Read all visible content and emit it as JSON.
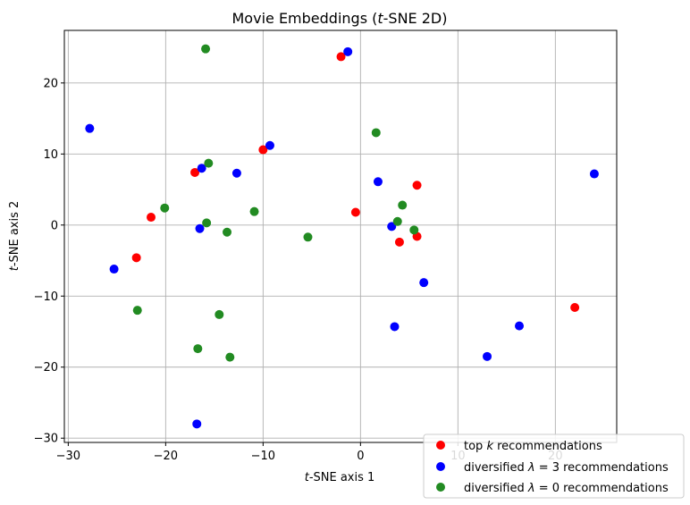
{
  "chart_data": {
    "type": "scatter",
    "title": "Movie Embeddings (t-SNE 2D)",
    "title_parts": [
      "Movie Embeddings (",
      "t",
      "-SNE 2D)"
    ],
    "xlabel": "t-SNE axis 1",
    "xlabel_parts": [
      "t",
      "-SNE axis 1"
    ],
    "ylabel": "t-SNE axis 2",
    "ylabel_parts": [
      "t",
      "-SNE axis 2"
    ],
    "xlim": [
      -30.4,
      26.3
    ],
    "ylim": [
      -30.6,
      27.4
    ],
    "xticks": [
      -30,
      -20,
      -10,
      0,
      10,
      20
    ],
    "yticks": [
      -30,
      -20,
      -10,
      0,
      10,
      20
    ],
    "xtick_labels": [
      "−30",
      "−20",
      "−10",
      "0",
      "10",
      "20"
    ],
    "ytick_labels": [
      "−30",
      "−20",
      "−10",
      "0",
      "10",
      "20"
    ],
    "grid": true,
    "legend_position": "bottom-right",
    "series": [
      {
        "name": "top k recommendations",
        "name_parts": [
          "top ",
          "k",
          " recommendations"
        ],
        "color": "#ff0000",
        "points": [
          [
            -2.0,
            23.7
          ],
          [
            -10.0,
            10.6
          ],
          [
            -17.0,
            7.4
          ],
          [
            -21.5,
            1.1
          ],
          [
            -23.0,
            -4.6
          ],
          [
            -0.5,
            1.8
          ],
          [
            5.8,
            5.6
          ],
          [
            4.0,
            -2.4
          ],
          [
            5.8,
            -1.6
          ],
          [
            22.0,
            -11.6
          ]
        ]
      },
      {
        "name": "diversified λ = 3 recommendations",
        "name_parts": [
          "diversified ",
          "λ",
          " = 3 recommendations"
        ],
        "color": "#0000ff",
        "points": [
          [
            -1.3,
            24.4
          ],
          [
            -27.8,
            13.6
          ],
          [
            -9.3,
            11.2
          ],
          [
            -16.3,
            8.0
          ],
          [
            -12.7,
            7.3
          ],
          [
            -16.5,
            -0.5
          ],
          [
            -25.3,
            -6.2
          ],
          [
            1.8,
            6.1
          ],
          [
            3.2,
            -0.2
          ],
          [
            6.5,
            -8.1
          ],
          [
            3.5,
            -14.3
          ],
          [
            13.0,
            -18.5
          ],
          [
            16.3,
            -14.2
          ],
          [
            24.0,
            7.2
          ],
          [
            -16.8,
            -28.0
          ]
        ]
      },
      {
        "name": "diversified λ = 0 recommendations",
        "name_parts": [
          "diversified ",
          "λ",
          " = 0 recommendations"
        ],
        "color": "#228b22",
        "points": [
          [
            -15.9,
            24.8
          ],
          [
            1.6,
            13.0
          ],
          [
            -15.6,
            8.7
          ],
          [
            -20.1,
            2.4
          ],
          [
            -15.8,
            0.3
          ],
          [
            -10.9,
            1.9
          ],
          [
            -13.7,
            -1.0
          ],
          [
            -5.4,
            -1.7
          ],
          [
            4.3,
            2.8
          ],
          [
            3.8,
            0.5
          ],
          [
            5.5,
            -0.7
          ],
          [
            -22.9,
            -12.0
          ],
          [
            -14.5,
            -12.6
          ],
          [
            -16.7,
            -17.4
          ],
          [
            -13.4,
            -18.6
          ]
        ]
      }
    ]
  }
}
